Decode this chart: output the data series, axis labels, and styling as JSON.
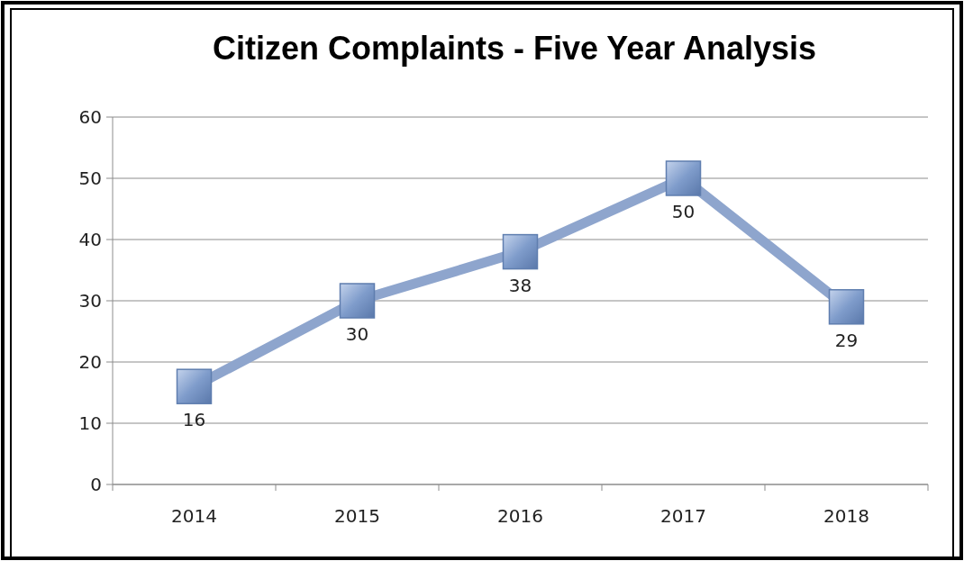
{
  "chart_data": {
    "type": "line",
    "title": "Citizen Complaints - Five Year Analysis",
    "categories": [
      "2014",
      "2015",
      "2016",
      "2017",
      "2018"
    ],
    "series": [
      {
        "color": "#8ea5cd",
        "values": [
          16,
          30,
          38,
          50,
          29
        ]
      }
    ],
    "ylim": [
      0,
      60
    ],
    "yticks": [
      0,
      10,
      20,
      30,
      40,
      50,
      60
    ],
    "grid": "y",
    "marker": "square",
    "line_style": "solid",
    "data_labels": true
  }
}
